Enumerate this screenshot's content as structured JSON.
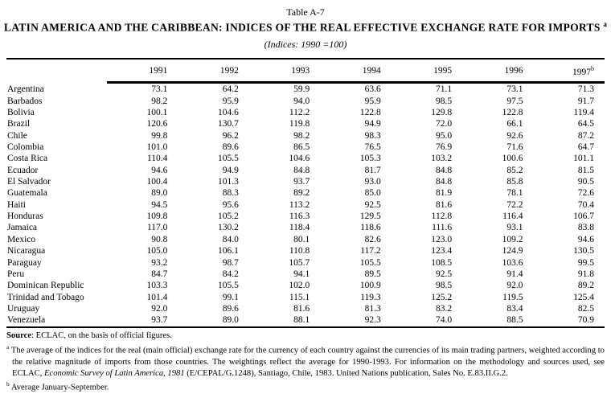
{
  "table": {
    "label": "Table A-7",
    "title": "LATIN AMERICA AND THE CARIBBEAN: INDICES OF THE REAL EFFECTIVE EXCHANGE RATE FOR IMPORTS",
    "title_note_ref": "a",
    "subtitle": "(Indices: 1990 =100)",
    "columns": [
      "1991",
      "1992",
      "1993",
      "1994",
      "1995",
      "1996",
      "1997"
    ],
    "last_column_note_ref": "b",
    "rows": [
      {
        "country": "Argentina",
        "values": [
          "73.1",
          "64.2",
          "59.9",
          "63.6",
          "71.1",
          "73.1",
          "71.3"
        ]
      },
      {
        "country": "Barbados",
        "values": [
          "98.2",
          "95.9",
          "94.0",
          "95.9",
          "98.5",
          "97.5",
          "91.7"
        ]
      },
      {
        "country": "Bolivia",
        "values": [
          "100.1",
          "104.6",
          "112.2",
          "122.8",
          "129.8",
          "122.8",
          "119.4"
        ]
      },
      {
        "country": "Brazil",
        "values": [
          "120.6",
          "130.7",
          "119.8",
          "94.9",
          "72.0",
          "66.1",
          "64.5"
        ]
      },
      {
        "country": "Chile",
        "values": [
          "99.8",
          "96.2",
          "98.2",
          "98.3",
          "95.0",
          "92.6",
          "87.2"
        ]
      },
      {
        "country": "Colombia",
        "values": [
          "101.0",
          "89.6",
          "86.5",
          "76.5",
          "76.9",
          "71.6",
          "64.7"
        ]
      },
      {
        "country": "Costa Rica",
        "values": [
          "110.4",
          "105.5",
          "104.6",
          "105.3",
          "103.2",
          "100.6",
          "101.1"
        ]
      },
      {
        "country": "Ecuador",
        "values": [
          "94.6",
          "94.9",
          "84.8",
          "81.7",
          "84.8",
          "85.2",
          "81.5"
        ]
      },
      {
        "country": "El Salvador",
        "values": [
          "100.4",
          "101.3",
          "93.7",
          "93.0",
          "84.8",
          "85.8",
          "90.5"
        ]
      },
      {
        "country": "Guatemala",
        "values": [
          "89.0",
          "88.3",
          "89.2",
          "85.0",
          "81.9",
          "78.1",
          "72.6"
        ]
      },
      {
        "country": "Haiti",
        "values": [
          "94.5",
          "95.6",
          "113.2",
          "92.5",
          "81.6",
          "72.2",
          "70.4"
        ]
      },
      {
        "country": "Honduras",
        "values": [
          "109.8",
          "105.2",
          "116.3",
          "129.5",
          "112.8",
          "116.4",
          "106.7"
        ]
      },
      {
        "country": "Jamaica",
        "values": [
          "117.0",
          "130.2",
          "118.4",
          "118.6",
          "111.6",
          "93.1",
          "83.8"
        ]
      },
      {
        "country": "Mexico",
        "values": [
          "90.8",
          "84.0",
          "80.1",
          "82.6",
          "123.0",
          "109.2",
          "94.6"
        ]
      },
      {
        "country": "Nicaragua",
        "values": [
          "105.0",
          "106.1",
          "110.8",
          "117.2",
          "123.4",
          "124.9",
          "130.5"
        ]
      },
      {
        "country": "Paraguay",
        "values": [
          "93.2",
          "98.7",
          "105.7",
          "105.5",
          "108.5",
          "103.6",
          "99.5"
        ]
      },
      {
        "country": "Peru",
        "values": [
          "84.7",
          "84.2",
          "94.1",
          "89.5",
          "92.5",
          "91.4",
          "91.8"
        ]
      },
      {
        "country": "Dominican Republic",
        "values": [
          "103.3",
          "105.5",
          "102.0",
          "100.9",
          "98.5",
          "92.0",
          "89.2"
        ]
      },
      {
        "country": "Trinidad and Tobago",
        "values": [
          "101.4",
          "99.1",
          "115.1",
          "119.3",
          "125.2",
          "119.5",
          "125.4"
        ]
      },
      {
        "country": "Uruguay",
        "values": [
          "92.0",
          "89.6",
          "81.6",
          "81.3",
          "83.2",
          "83.4",
          "82.5"
        ]
      },
      {
        "country": "Venezuela",
        "values": [
          "93.7",
          "89.0",
          "88.1",
          "92.3",
          "74.0",
          "88.5",
          "70.9"
        ]
      }
    ]
  },
  "footer": {
    "source_label": "Source",
    "source_text": ": ECLAC, on the basis of official figures.",
    "footnote_a_ref": "a",
    "footnote_a_pre_italic": "The average of the indices for the real (main official) exchange rate for the currency of each country against the currencies of its main trading partners, weighted according to the relative magnitude of imports from those countries. The weightings reflect the average for 1990-1993. For information on the methodology and sources used, see ECLAC, ",
    "footnote_a_italic": "Economic Survey of Latin America, 1981",
    "footnote_a_post_italic": " (E/CEPAL/G.1248), Santiago, Chile, 1983. United Nations publication, Sales No. E.83.II.G.2.",
    "footnote_b_ref": "b",
    "footnote_b_text": "Average January-September."
  }
}
